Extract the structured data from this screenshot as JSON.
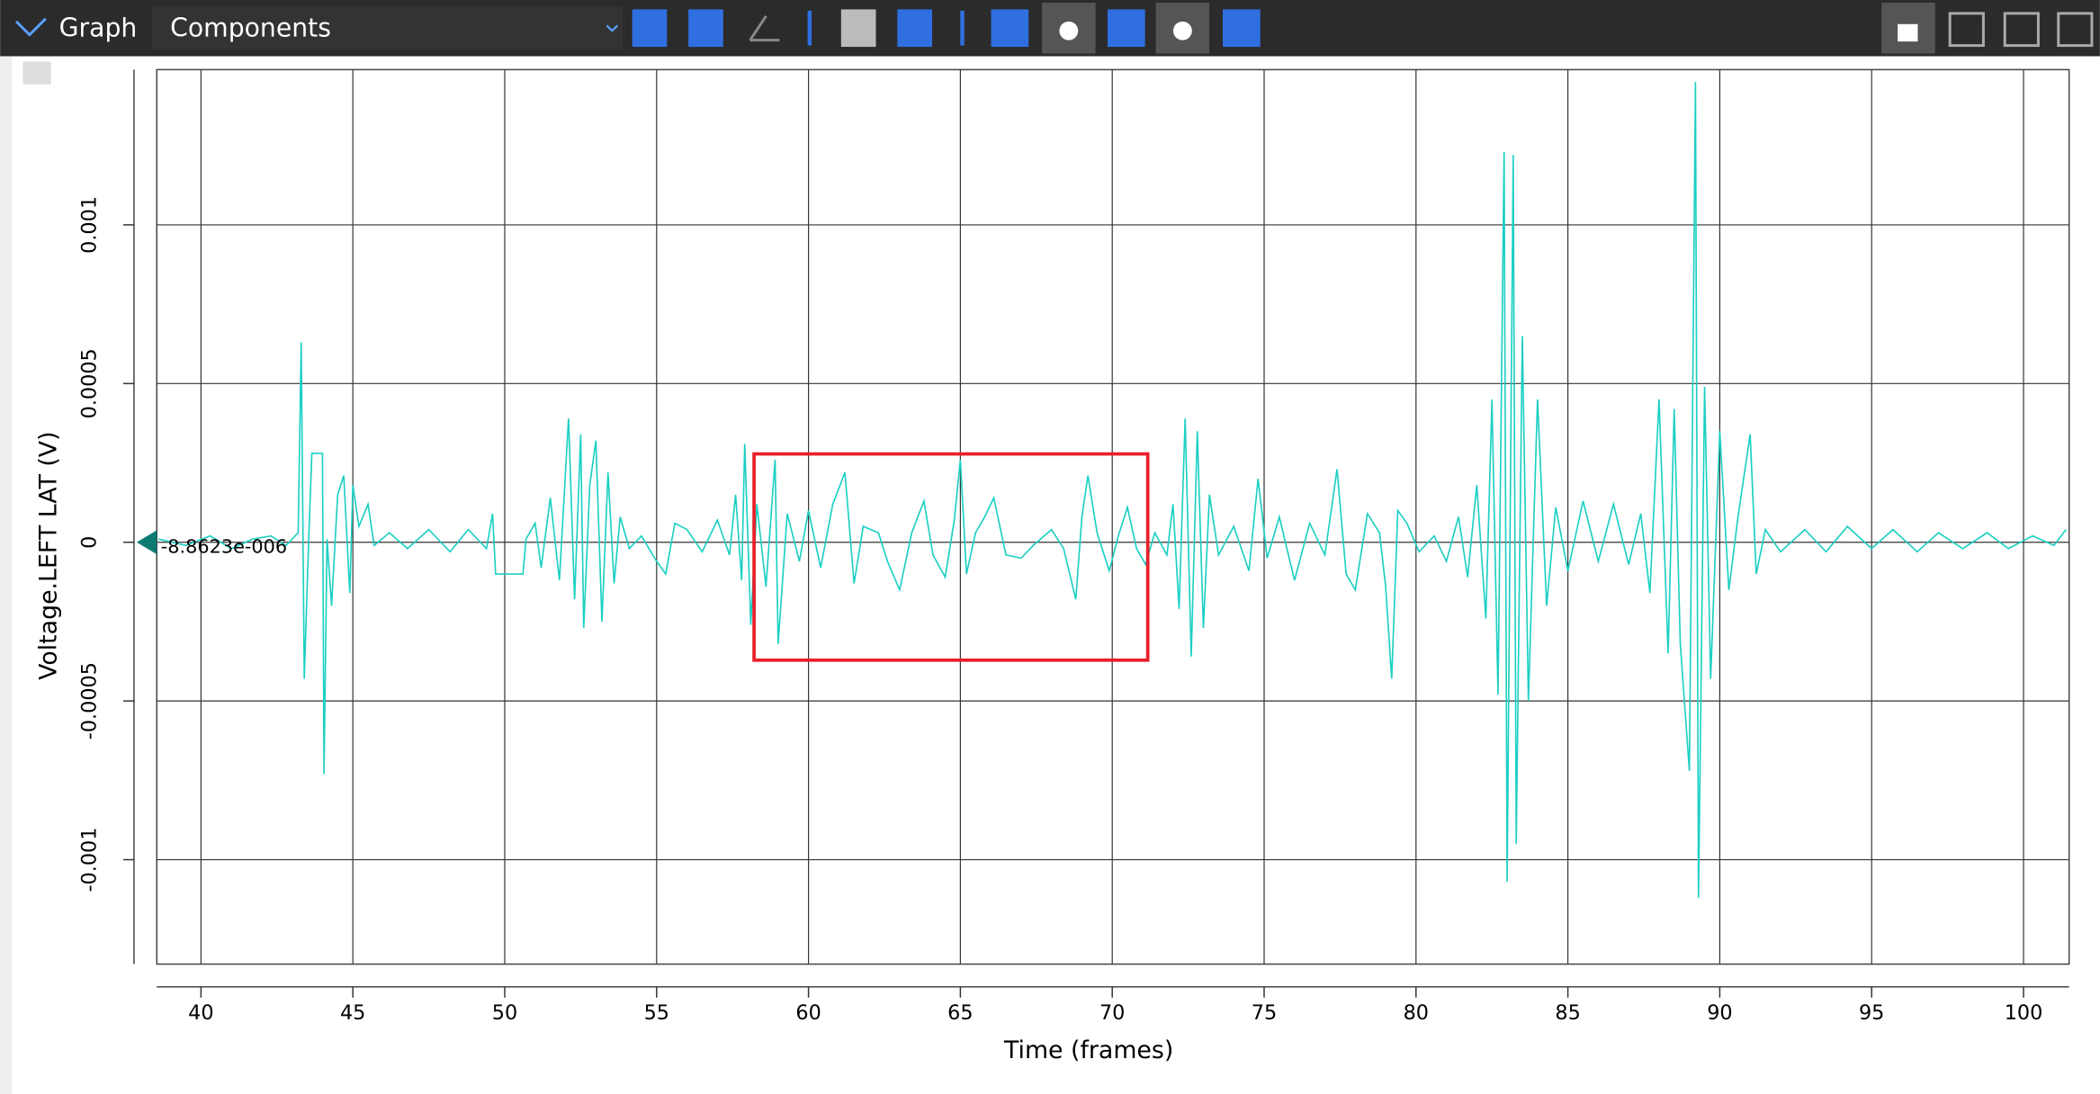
{
  "toolbar": {
    "graph": "Graph",
    "components": "Components"
  },
  "cursor_label": "-8.8623e-006",
  "chart_data": {
    "type": "line",
    "xlabel": "Time (frames)",
    "ylabel": "Voltage.LEFT LAT (V)",
    "color": "#1ccfc3",
    "xlim": [
      38.545,
      101.5
    ],
    "ylim": [
      -0.001329,
      0.001489
    ],
    "xticks": [
      40,
      45,
      50,
      55,
      60,
      65,
      70,
      75,
      80,
      85,
      90,
      95,
      100
    ],
    "yticks": [
      -0.001,
      -0.0005,
      0,
      0.0005,
      0.001
    ],
    "grid": true,
    "x": [
      38.6,
      39.5,
      40.3,
      41.0,
      41.7,
      42.3,
      42.8,
      43.2,
      43.3,
      43.4,
      43.55,
      43.65,
      44.0,
      44.05,
      44.15,
      44.3,
      44.5,
      44.7,
      44.9,
      45.0,
      45.2,
      45.5,
      45.7,
      46.2,
      46.8,
      47.5,
      48.2,
      48.8,
      49.4,
      49.6,
      49.7,
      50.6,
      50.7,
      51.0,
      51.2,
      51.5,
      51.8,
      52.1,
      52.3,
      52.5,
      52.6,
      52.8,
      53.0,
      53.2,
      53.4,
      53.6,
      53.8,
      54.1,
      54.5,
      55.0,
      55.3,
      55.6,
      56.0,
      56.5,
      57.0,
      57.4,
      57.6,
      57.8,
      57.9,
      58.1,
      58.3,
      58.6,
      58.9,
      59.0,
      59.3,
      59.7,
      60.0,
      60.4,
      60.8,
      61.2,
      61.5,
      61.8,
      62.3,
      62.6,
      63.0,
      63.4,
      63.8,
      64.1,
      64.5,
      64.8,
      65.0,
      65.2,
      65.5,
      65.8,
      66.1,
      66.5,
      67.0,
      67.4,
      68.0,
      68.4,
      68.8,
      69.0,
      69.2,
      69.5,
      69.9,
      70.2,
      70.5,
      70.8,
      71.1,
      71.4,
      71.8,
      72.0,
      72.2,
      72.4,
      72.6,
      72.8,
      73.0,
      73.2,
      73.5,
      74.0,
      74.5,
      74.8,
      75.1,
      75.5,
      76.0,
      76.5,
      77.0,
      77.4,
      77.7,
      78.0,
      78.4,
      78.8,
      79.0,
      79.2,
      79.4,
      79.7,
      80.1,
      80.6,
      81.0,
      81.4,
      81.7,
      82.0,
      82.3,
      82.5,
      82.7,
      82.9,
      83.0,
      83.2,
      83.3,
      83.5,
      83.7,
      84.0,
      84.3,
      84.6,
      85.0,
      85.5,
      86.0,
      86.5,
      87.0,
      87.4,
      87.7,
      88.0,
      88.3,
      88.5,
      88.7,
      89.0,
      89.2,
      89.3,
      89.5,
      89.7,
      90.0,
      90.3,
      90.6,
      91.0,
      91.2,
      91.5,
      92.0,
      92.8,
      93.5,
      94.2,
      95.0,
      95.7,
      96.5,
      97.2,
      98.0,
      98.8,
      99.5,
      100.3,
      101.0,
      101.4
    ],
    "values": [
      1e-05,
      -1e-05,
      2e-05,
      -2e-05,
      1e-05,
      2e-05,
      -1e-05,
      3e-05,
      0.00063,
      -0.00043,
      2e-05,
      0.00028,
      0.00028,
      -0.00073,
      1e-05,
      -0.0002,
      0.00015,
      0.00021,
      -0.00016,
      0.00018,
      5e-05,
      0.00012,
      -1e-05,
      3e-05,
      -2e-05,
      4e-05,
      -3e-05,
      4e-05,
      -2e-05,
      9e-05,
      -0.0001,
      -0.0001,
      1e-05,
      6e-05,
      -8e-05,
      0.00014,
      -0.00012,
      0.00039,
      -0.00018,
      0.00034,
      -0.00027,
      0.00018,
      0.00032,
      -0.00025,
      0.00022,
      -0.00013,
      8e-05,
      -2e-05,
      2e-05,
      -6e-05,
      -0.0001,
      6e-05,
      4e-05,
      -3e-05,
      7e-05,
      -4e-05,
      0.00015,
      -0.00012,
      0.00031,
      -0.00026,
      0.00012,
      -0.00014,
      0.00026,
      -0.00032,
      9e-05,
      -6e-05,
      0.0001,
      -8e-05,
      0.00012,
      0.00022,
      -0.00013,
      5e-05,
      3e-05,
      -6e-05,
      -0.00015,
      3e-05,
      0.00013,
      -4e-05,
      -0.00011,
      7e-05,
      0.00026,
      -0.0001,
      3e-05,
      8e-05,
      0.00014,
      -4e-05,
      -5e-05,
      -1e-05,
      4e-05,
      -2e-05,
      -0.00018,
      8e-05,
      0.00021,
      3e-05,
      -9e-05,
      2e-05,
      0.00011,
      -2e-05,
      -7e-05,
      3e-05,
      -4e-05,
      0.00012,
      -0.00021,
      0.00039,
      -0.00036,
      0.00035,
      -0.00027,
      0.00015,
      -4e-05,
      5e-05,
      -9e-05,
      0.0002,
      -5e-05,
      8e-05,
      -0.00012,
      6e-05,
      -4e-05,
      0.00023,
      -0.0001,
      -0.00015,
      9e-05,
      3e-05,
      -0.00014,
      -0.00043,
      0.0001,
      6e-05,
      -3e-05,
      2e-05,
      -6e-05,
      8e-05,
      -0.00011,
      0.00018,
      -0.00024,
      0.00045,
      -0.00048,
      0.00123,
      -0.00107,
      0.00122,
      -0.00095,
      0.00065,
      -0.0005,
      0.00045,
      -0.0002,
      0.00011,
      -9e-05,
      0.00013,
      -6e-05,
      0.00012,
      -7e-05,
      9e-05,
      -0.00016,
      0.00045,
      -0.00035,
      0.00042,
      -0.00032,
      -0.00072,
      0.00145,
      -0.00112,
      0.00049,
      -0.00043,
      0.00035,
      -0.00015,
      8e-05,
      0.00034,
      -0.0001,
      4e-05,
      -3e-05,
      4e-05,
      -3e-05,
      5e-05,
      -2e-05,
      4e-05,
      -3e-05,
      3e-05,
      -2e-05,
      3e-05,
      -2e-05,
      2e-05,
      -1e-05,
      4e-05
    ]
  }
}
